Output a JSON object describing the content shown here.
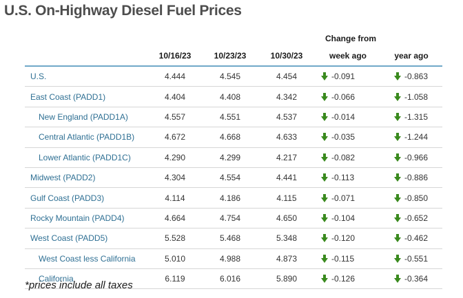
{
  "title": "U.S. On-Highway Diesel Fuel Prices",
  "change_from": "Change from",
  "columns": [
    "10/16/23",
    "10/23/23",
    "10/30/23",
    "week ago",
    "year ago"
  ],
  "arrow_color": "#3a8a1e",
  "link_color": "#2e6f93",
  "rows": [
    {
      "region": "U.S.",
      "v1": "4.444",
      "v2": "4.545",
      "v3": "4.454",
      "week": "-0.091",
      "year": "-0.863"
    },
    {
      "region": "East Coast (PADD1)",
      "v1": "4.404",
      "v2": "4.408",
      "v3": "4.342",
      "week": "-0.066",
      "year": "-1.058"
    },
    {
      "region": "New England (PADD1A)",
      "v1": "4.557",
      "v2": "4.551",
      "v3": "4.537",
      "week": "-0.014",
      "year": "-1.315"
    },
    {
      "region": "Central Atlantic (PADD1B)",
      "v1": "4.672",
      "v2": "4.668",
      "v3": "4.633",
      "week": "-0.035",
      "year": "-1.244"
    },
    {
      "region": "Lower Atlantic (PADD1C)",
      "v1": "4.290",
      "v2": "4.299",
      "v3": "4.217",
      "week": "-0.082",
      "year": "-0.966"
    },
    {
      "region": "Midwest (PADD2)",
      "v1": "4.304",
      "v2": "4.554",
      "v3": "4.441",
      "week": "-0.113",
      "year": "-0.886"
    },
    {
      "region": "Gulf Coast (PADD3)",
      "v1": "4.114",
      "v2": "4.186",
      "v3": "4.115",
      "week": "-0.071",
      "year": "-0.850"
    },
    {
      "region": "Rocky Mountain (PADD4)",
      "v1": "4.664",
      "v2": "4.754",
      "v3": "4.650",
      "week": "-0.104",
      "year": "-0.652"
    },
    {
      "region": "West Coast (PADD5)",
      "v1": "5.528",
      "v2": "5.468",
      "v3": "5.348",
      "week": "-0.120",
      "year": "-0.462"
    },
    {
      "region": "West Coast less California",
      "v1": "5.010",
      "v2": "4.988",
      "v3": "4.873",
      "week": "-0.115",
      "year": "-0.551"
    },
    {
      "region": "California",
      "v1": "6.119",
      "v2": "6.016",
      "v3": "5.890",
      "week": "-0.126",
      "year": "-0.364"
    }
  ],
  "footnote": "*prices include all taxes"
}
